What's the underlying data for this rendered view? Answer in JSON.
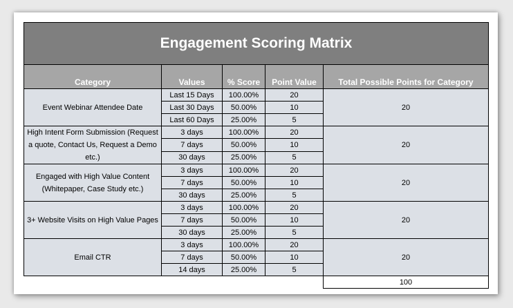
{
  "title": "Engagement Scoring Matrix",
  "headers": {
    "category": "Category",
    "values": "Values",
    "score": "% Score",
    "point_value": "Point Value",
    "total": "Total Possible Points for Category"
  },
  "groups": [
    {
      "category": "Event Webinar Attendee Date",
      "rows": [
        {
          "value": "Last 15 Days",
          "score": "100.00%",
          "points": "20"
        },
        {
          "value": "Last 30 Days",
          "score": "50.00%",
          "points": "10"
        },
        {
          "value": "Last 60 Days",
          "score": "25.00%",
          "points": "5"
        }
      ],
      "total": "20"
    },
    {
      "category": "High Intent Form Submission (Request a quote, Contact Us, Request a Demo etc.)",
      "rows": [
        {
          "value": "3 days",
          "score": "100.00%",
          "points": "20"
        },
        {
          "value": "7 days",
          "score": "50.00%",
          "points": "10"
        },
        {
          "value": "30 days",
          "score": "25.00%",
          "points": "5"
        }
      ],
      "total": "20"
    },
    {
      "category": "Engaged with High Value Content (Whitepaper, Case Study etc.)",
      "rows": [
        {
          "value": "3 days",
          "score": "100.00%",
          "points": "20"
        },
        {
          "value": "7 days",
          "score": "50.00%",
          "points": "10"
        },
        {
          "value": "30 days",
          "score": "25.00%",
          "points": "5"
        }
      ],
      "total": "20"
    },
    {
      "category": "3+ Website Visits on High Value Pages",
      "rows": [
        {
          "value": "3 days",
          "score": "100.00%",
          "points": "20"
        },
        {
          "value": "7 days",
          "score": "50.00%",
          "points": "10"
        },
        {
          "value": "30 days",
          "score": "25.00%",
          "points": "5"
        }
      ],
      "total": "20"
    },
    {
      "category": "Email CTR",
      "rows": [
        {
          "value": "3 days",
          "score": "100.00%",
          "points": "20"
        },
        {
          "value": "7 days",
          "score": "50.00%",
          "points": "10"
        },
        {
          "value": "14 days",
          "score": "25.00%",
          "points": "5"
        }
      ],
      "total": "20"
    }
  ],
  "grand_total": "100"
}
